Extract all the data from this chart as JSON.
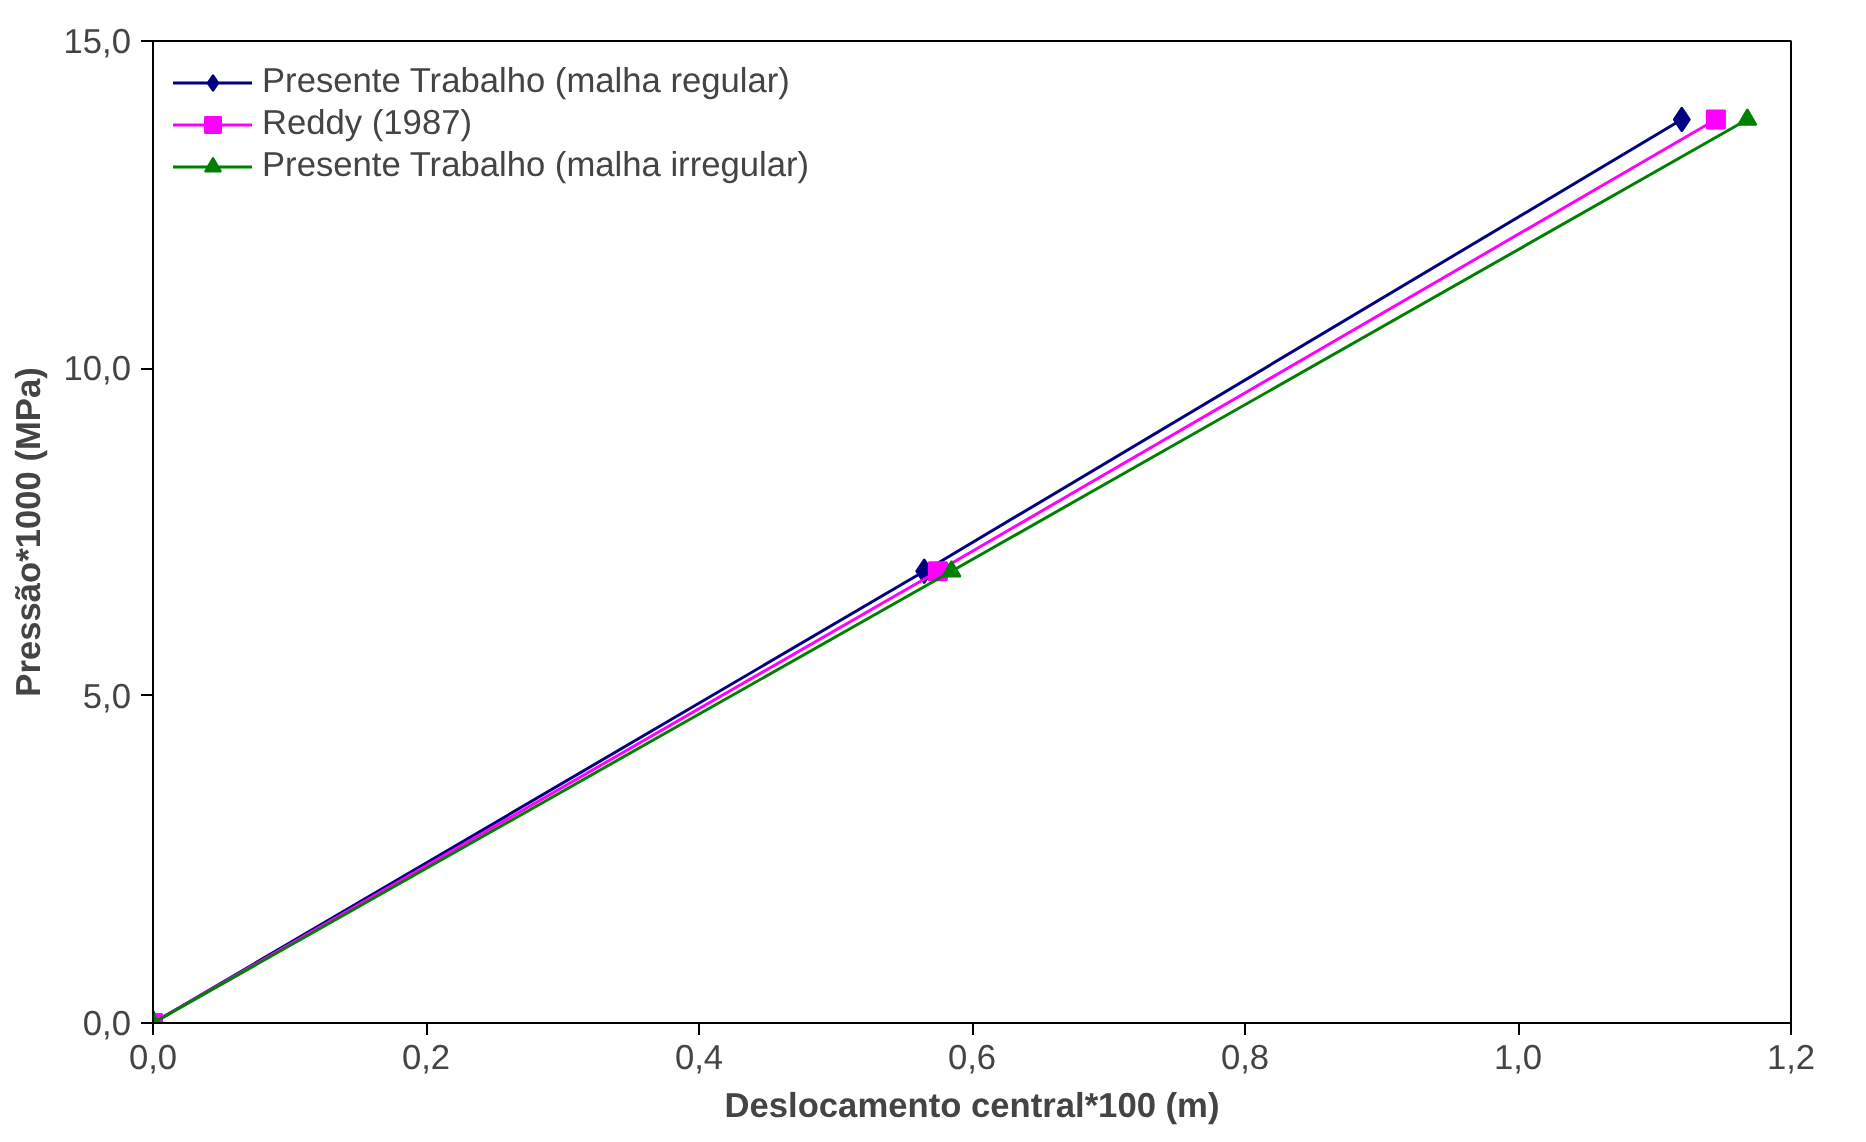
{
  "chart_data": {
    "type": "line",
    "xlabel": "Deslocamento central*100 (m)",
    "ylabel": "Pressão*1000 (MPa)",
    "xlim": [
      0,
      1.2
    ],
    "ylim": [
      0,
      15
    ],
    "xticks": [
      {
        "value": 0,
        "label": "0,0"
      },
      {
        "value": 0.2,
        "label": "0,2"
      },
      {
        "value": 0.4,
        "label": "0,4"
      },
      {
        "value": 0.6,
        "label": "0,6"
      },
      {
        "value": 0.8,
        "label": "0,8"
      },
      {
        "value": 1.0,
        "label": "1,0"
      },
      {
        "value": 1.2,
        "label": "1,2"
      }
    ],
    "yticks": [
      {
        "value": 0,
        "label": "0,0"
      },
      {
        "value": 5,
        "label": "5,0"
      },
      {
        "value": 10,
        "label": "10,0"
      },
      {
        "value": 15,
        "label": "15,0"
      }
    ],
    "grid": false,
    "legend": "top left",
    "series": [
      {
        "name": "Presente Trabalho (malha regular)",
        "color": "#000080",
        "marker": "diamond",
        "x": [
          0,
          0.565,
          1.12
        ],
        "values": [
          0,
          6.9,
          13.8
        ]
      },
      {
        "name": "Reddy (1987)",
        "color": "#ff00ff",
        "marker": "square",
        "x": [
          0,
          0.575,
          1.145
        ],
        "values": [
          0,
          6.9,
          13.8
        ]
      },
      {
        "name": "Presente Trabalho (malha irregular)",
        "color": "#008000",
        "marker": "triangle",
        "x": [
          0,
          0.585,
          1.168
        ],
        "values": [
          0,
          6.9,
          13.8
        ]
      }
    ]
  }
}
